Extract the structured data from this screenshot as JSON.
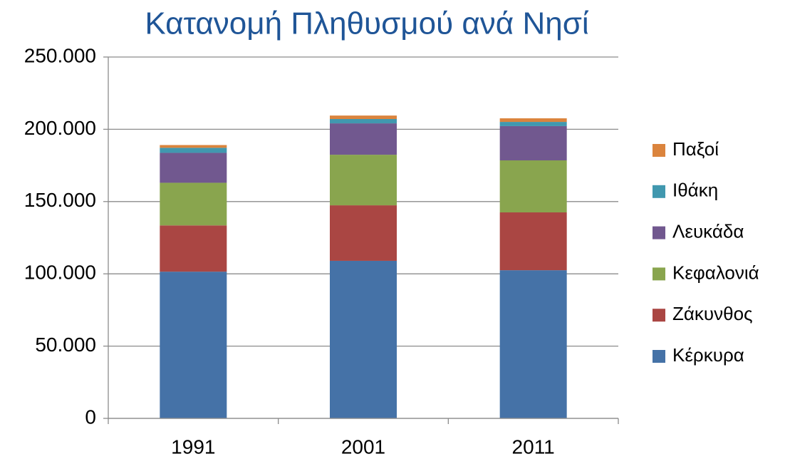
{
  "chart_data": {
    "type": "stacked_bar",
    "title": "Κατανομή Πληθυσμού ανά Νησί",
    "categories": [
      "1991",
      "2001",
      "2011"
    ],
    "series": [
      {
        "name": "Κέρκυρα",
        "color": "#4572a7",
        "values": [
          101500,
          109000,
          102500
        ]
      },
      {
        "name": "Ζάκυνθος",
        "color": "#aa4643",
        "values": [
          32000,
          38400,
          40000
        ]
      },
      {
        "name": "Κεφαλονιά",
        "color": "#89a54e",
        "values": [
          29500,
          35000,
          36000
        ]
      },
      {
        "name": "Λευκάδα",
        "color": "#71588f",
        "values": [
          20700,
          21700,
          23700
        ]
      },
      {
        "name": "Ιθάκη",
        "color": "#4198af",
        "values": [
          3500,
          3000,
          2900
        ]
      },
      {
        "name": "Παξοί",
        "color": "#db843d",
        "values": [
          1900,
          2400,
          2500
        ]
      }
    ],
    "ylim": [
      0,
      250000
    ],
    "yticks": [
      0,
      {
        "value": 50000,
        "label": "50.000"
      },
      {
        "value": 100000,
        "label": "100.000"
      },
      {
        "value": 150000,
        "label": "150.000"
      },
      {
        "value": 200000,
        "label": "200.000"
      },
      {
        "value": 250000,
        "label": "250.000"
      }
    ],
    "grid": true,
    "legend": "right"
  }
}
